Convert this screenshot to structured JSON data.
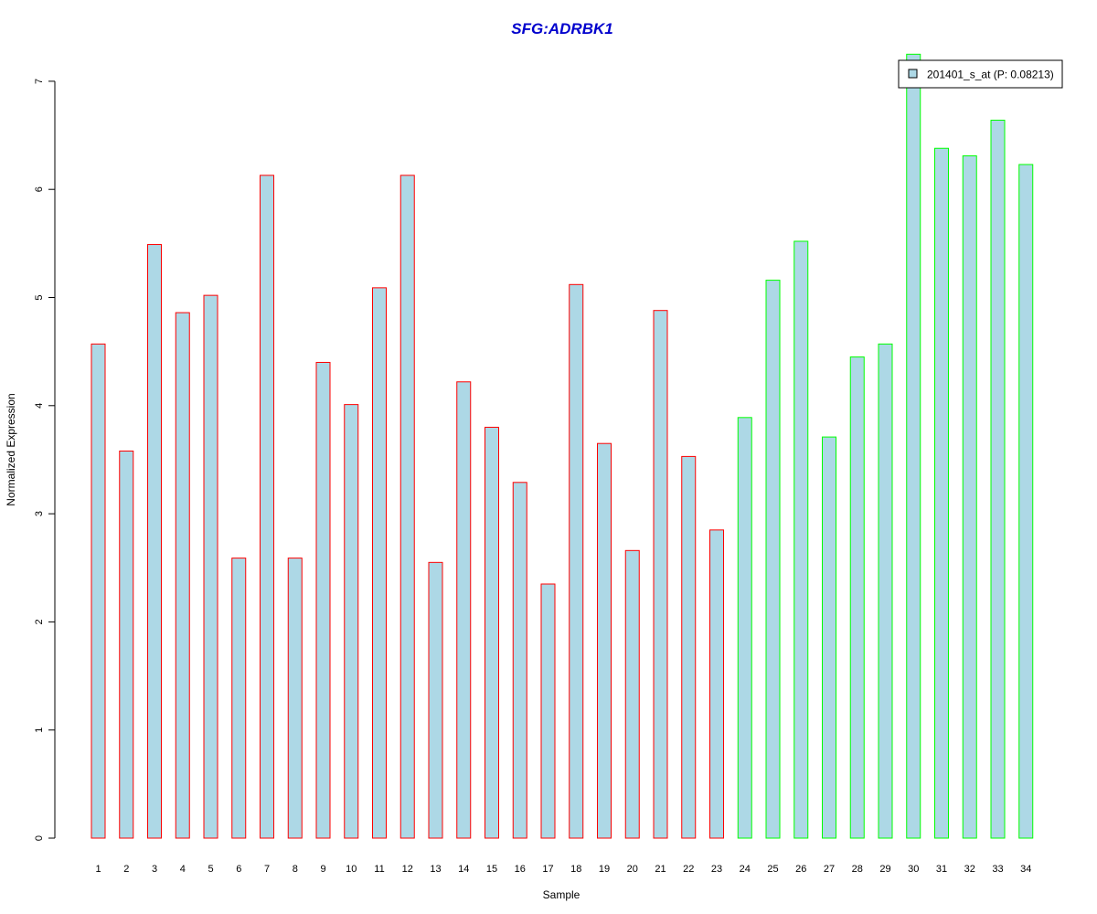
{
  "chart_data": {
    "type": "bar",
    "title": "SFG:ADRBK1",
    "xlabel": "Sample",
    "ylabel": "Normalized Expression",
    "ylim": [
      0,
      7.25
    ],
    "yticks": [
      0,
      1,
      2,
      3,
      4,
      5,
      6,
      7
    ],
    "grid": false,
    "legend": {
      "placement": "top-right",
      "entries": [
        {
          "label": "201401_s_at (P: 0.08213)",
          "fill": "#add8e6"
        }
      ]
    },
    "categories": [
      "1",
      "2",
      "3",
      "4",
      "5",
      "6",
      "7",
      "8",
      "9",
      "10",
      "11",
      "12",
      "13",
      "14",
      "15",
      "16",
      "17",
      "18",
      "19",
      "20",
      "21",
      "22",
      "23",
      "24",
      "25",
      "26",
      "27",
      "28",
      "29",
      "30",
      "31",
      "32",
      "33",
      "34"
    ],
    "values": [
      4.57,
      3.58,
      5.49,
      4.86,
      5.02,
      2.59,
      6.13,
      2.59,
      4.4,
      4.01,
      5.09,
      6.13,
      2.55,
      4.22,
      3.8,
      3.29,
      2.35,
      5.12,
      3.65,
      2.66,
      4.88,
      3.53,
      2.85,
      3.89,
      5.16,
      5.52,
      3.71,
      4.45,
      4.57,
      7.25,
      6.38,
      6.31,
      6.64,
      6.23
    ],
    "groups": [
      "red",
      "red",
      "red",
      "red",
      "red",
      "red",
      "red",
      "red",
      "red",
      "red",
      "red",
      "red",
      "red",
      "red",
      "red",
      "red",
      "red",
      "red",
      "red",
      "red",
      "red",
      "red",
      "red",
      "green",
      "green",
      "green",
      "green",
      "green",
      "green",
      "green",
      "green",
      "green",
      "green",
      "green"
    ],
    "colors": {
      "bar_fill": "#add8e6",
      "border_red": "#ff0000",
      "border_green": "#00ff00",
      "title": "#0000cd"
    }
  }
}
